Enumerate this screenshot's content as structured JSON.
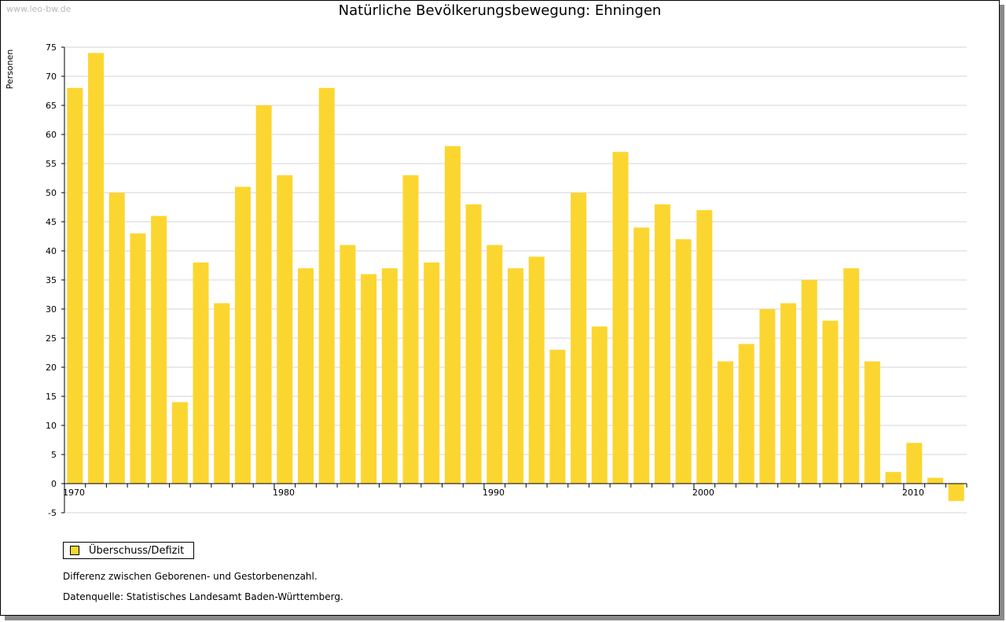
{
  "watermark": "www.leo-bw.de",
  "legend": {
    "label": "Überschuss/Defizit",
    "color": "#fcd630"
  },
  "notes": [
    "Differenz zwischen Geborenen- und Gestorbenenzahl.",
    "Datenquelle: Statistisches Landesamt Baden-Württemberg."
  ],
  "chart_data": {
    "type": "bar",
    "title": "Natürliche Bevölkerungsbewegung: Ehningen",
    "xlabel": "",
    "ylabel": "Personen",
    "ylim": [
      -5,
      75
    ],
    "yticks": [
      75,
      70,
      65,
      60,
      55,
      50,
      45,
      40,
      35,
      30,
      25,
      20,
      15,
      10,
      5,
      0,
      -5
    ],
    "xtick_labels": [
      "1970",
      "1980",
      "1990",
      "2000",
      "2010"
    ],
    "grid": true,
    "legend_position": "bottom-left",
    "bar_color": "#fcd630",
    "categories": [
      1970,
      1971,
      1972,
      1973,
      1974,
      1975,
      1976,
      1977,
      1978,
      1979,
      1980,
      1981,
      1982,
      1983,
      1984,
      1985,
      1986,
      1987,
      1988,
      1989,
      1990,
      1991,
      1992,
      1993,
      1994,
      1995,
      1996,
      1997,
      1998,
      1999,
      2000,
      2001,
      2002,
      2003,
      2004,
      2005,
      2006,
      2007,
      2008,
      2009,
      2010,
      2011,
      2012
    ],
    "series": [
      {
        "name": "Überschuss/Defizit",
        "values": [
          68,
          74,
          50,
          43,
          46,
          14,
          38,
          31,
          51,
          65,
          53,
          37,
          68,
          41,
          36,
          37,
          53,
          38,
          58,
          48,
          41,
          37,
          39,
          23,
          50,
          27,
          57,
          44,
          48,
          42,
          47,
          21,
          24,
          30,
          31,
          35,
          28,
          37,
          21,
          2,
          7,
          1,
          -3
        ]
      }
    ]
  }
}
